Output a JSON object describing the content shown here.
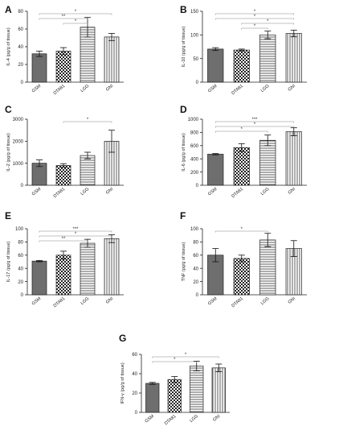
{
  "patterns": {
    "dark": "#6e6e6e",
    "stroke": "#222222",
    "sig_line": "#888888"
  },
  "chart_data": [
    {
      "id": "A",
      "panel_label": "A",
      "type": "bar",
      "categories": [
        "GSM",
        "DTA81",
        "LGG",
        "GNI"
      ],
      "values": [
        32,
        35,
        62,
        51
      ],
      "errors": [
        3,
        4,
        11,
        4
      ],
      "ylabel": "IL-4 (pg/g of tissue)",
      "ylim": [
        0,
        80
      ],
      "yticks": [
        "0",
        "20",
        "40",
        "60",
        "80"
      ],
      "significance": [
        {
          "from": 0,
          "to": 3,
          "label": "*",
          "level": 1
        },
        {
          "from": 0,
          "to": 2,
          "label": "**",
          "level": 2
        },
        {
          "from": 1,
          "to": 2,
          "label": "*",
          "level": 3
        }
      ]
    },
    {
      "id": "B",
      "panel_label": "B",
      "type": "bar",
      "categories": [
        "GSM",
        "DTA81",
        "LGG",
        "GNI"
      ],
      "values": [
        70,
        68,
        100,
        103
      ],
      "errors": [
        3,
        2,
        8,
        7
      ],
      "ylabel": "IL-10 (pg/g of tissue)",
      "ylim": [
        0,
        150
      ],
      "yticks": [
        "0",
        "50",
        "100",
        "150"
      ],
      "significance": [
        {
          "from": 0,
          "to": 3,
          "label": "*",
          "level": 1
        },
        {
          "from": 0,
          "to": 3,
          "label": "*",
          "level": 2
        },
        {
          "from": 1,
          "to": 3,
          "label": "*",
          "level": 3
        },
        {
          "from": 1,
          "to": 2,
          "label": "*",
          "level": 4
        }
      ]
    },
    {
      "id": "C",
      "panel_label": "C",
      "type": "bar",
      "categories": [
        "GSM",
        "DTA81",
        "LGG",
        "GNI"
      ],
      "values": [
        1000,
        900,
        1350,
        2000
      ],
      "errors": [
        150,
        80,
        150,
        500
      ],
      "ylabel": "IL-2 (pg/g of tissue)",
      "ylim": [
        0,
        3000
      ],
      "yticks": [
        "0",
        "1000",
        "2000",
        "3000"
      ],
      "significance": [
        {
          "from": 1,
          "to": 3,
          "label": "*",
          "level": 1
        }
      ]
    },
    {
      "id": "D",
      "panel_label": "D",
      "type": "bar",
      "categories": [
        "GSM",
        "DTA81",
        "LGG",
        "GNI"
      ],
      "values": [
        470,
        570,
        680,
        810
      ],
      "errors": [
        10,
        60,
        80,
        60
      ],
      "ylabel": "IL-6 (pg/g of tissue)",
      "ylim": [
        0,
        1000
      ],
      "yticks": [
        "0",
        "200",
        "400",
        "600",
        "800",
        "1000"
      ],
      "significance": [
        {
          "from": 0,
          "to": 3,
          "label": "***",
          "level": 1
        },
        {
          "from": 0,
          "to": 3,
          "label": "*",
          "level": 2
        },
        {
          "from": 0,
          "to": 2,
          "label": "*",
          "level": 3
        }
      ]
    },
    {
      "id": "E",
      "panel_label": "E",
      "type": "bar",
      "categories": [
        "GSM",
        "DTA81",
        "LGG",
        "GNI"
      ],
      "values": [
        51,
        60,
        78,
        85
      ],
      "errors": [
        1,
        6,
        6,
        6
      ],
      "ylabel": "IL-17 (pg/g of tissue)",
      "ylim": [
        0,
        100
      ],
      "yticks": [
        "0",
        "20",
        "40",
        "60",
        "80",
        "100"
      ],
      "significance": [
        {
          "from": 0,
          "to": 3,
          "label": "***",
          "level": 1
        },
        {
          "from": 0,
          "to": 3,
          "label": "*",
          "level": 2
        },
        {
          "from": 0,
          "to": 2,
          "label": "**",
          "level": 3
        }
      ]
    },
    {
      "id": "F",
      "panel_label": "F",
      "type": "bar",
      "categories": [
        "GSM",
        "DTA81",
        "LGG",
        "GNI"
      ],
      "values": [
        60,
        55,
        83,
        70
      ],
      "errors": [
        10,
        5,
        10,
        12
      ],
      "ylabel": "TNF (pg/g of tissue)",
      "ylim": [
        0,
        100
      ],
      "yticks": [
        "0",
        "20",
        "40",
        "60",
        "80",
        "100"
      ],
      "significance": [
        {
          "from": 0,
          "to": 2,
          "label": "*",
          "level": 1
        }
      ]
    },
    {
      "id": "G",
      "panel_label": "G",
      "type": "bar",
      "categories": [
        "GSM",
        "DTA81",
        "LGG",
        "GNI"
      ],
      "values": [
        30,
        34,
        48,
        46
      ],
      "errors": [
        1,
        3,
        5,
        4
      ],
      "ylabel": "IFN-γ (pg/g of tissue)",
      "ylim": [
        0,
        60
      ],
      "yticks": [
        "0",
        "20",
        "40",
        "60"
      ],
      "significance": [
        {
          "from": 0,
          "to": 3,
          "label": "*",
          "level": 1
        },
        {
          "from": 0,
          "to": 2,
          "label": "*",
          "level": 2
        }
      ]
    }
  ]
}
